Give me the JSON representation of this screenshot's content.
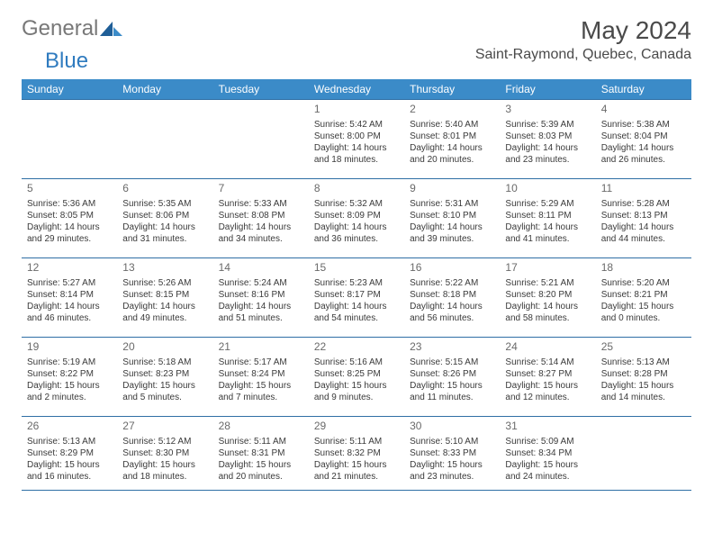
{
  "brand": {
    "name1": "General",
    "name2": "Blue"
  },
  "title": "May 2024",
  "location": "Saint-Raymond, Quebec, Canada",
  "colors": {
    "header_bg": "#3b8bc8",
    "rule": "#2f6fa5",
    "logo_gray": "#787878",
    "logo_blue": "#2f7bbf"
  },
  "weekdays": [
    "Sunday",
    "Monday",
    "Tuesday",
    "Wednesday",
    "Thursday",
    "Friday",
    "Saturday"
  ],
  "weeks": [
    [
      null,
      null,
      null,
      {
        "n": "1",
        "sr": "Sunrise: 5:42 AM",
        "ss": "Sunset: 8:00 PM",
        "d1": "Daylight: 14 hours",
        "d2": "and 18 minutes."
      },
      {
        "n": "2",
        "sr": "Sunrise: 5:40 AM",
        "ss": "Sunset: 8:01 PM",
        "d1": "Daylight: 14 hours",
        "d2": "and 20 minutes."
      },
      {
        "n": "3",
        "sr": "Sunrise: 5:39 AM",
        "ss": "Sunset: 8:03 PM",
        "d1": "Daylight: 14 hours",
        "d2": "and 23 minutes."
      },
      {
        "n": "4",
        "sr": "Sunrise: 5:38 AM",
        "ss": "Sunset: 8:04 PM",
        "d1": "Daylight: 14 hours",
        "d2": "and 26 minutes."
      }
    ],
    [
      {
        "n": "5",
        "sr": "Sunrise: 5:36 AM",
        "ss": "Sunset: 8:05 PM",
        "d1": "Daylight: 14 hours",
        "d2": "and 29 minutes."
      },
      {
        "n": "6",
        "sr": "Sunrise: 5:35 AM",
        "ss": "Sunset: 8:06 PM",
        "d1": "Daylight: 14 hours",
        "d2": "and 31 minutes."
      },
      {
        "n": "7",
        "sr": "Sunrise: 5:33 AM",
        "ss": "Sunset: 8:08 PM",
        "d1": "Daylight: 14 hours",
        "d2": "and 34 minutes."
      },
      {
        "n": "8",
        "sr": "Sunrise: 5:32 AM",
        "ss": "Sunset: 8:09 PM",
        "d1": "Daylight: 14 hours",
        "d2": "and 36 minutes."
      },
      {
        "n": "9",
        "sr": "Sunrise: 5:31 AM",
        "ss": "Sunset: 8:10 PM",
        "d1": "Daylight: 14 hours",
        "d2": "and 39 minutes."
      },
      {
        "n": "10",
        "sr": "Sunrise: 5:29 AM",
        "ss": "Sunset: 8:11 PM",
        "d1": "Daylight: 14 hours",
        "d2": "and 41 minutes."
      },
      {
        "n": "11",
        "sr": "Sunrise: 5:28 AM",
        "ss": "Sunset: 8:13 PM",
        "d1": "Daylight: 14 hours",
        "d2": "and 44 minutes."
      }
    ],
    [
      {
        "n": "12",
        "sr": "Sunrise: 5:27 AM",
        "ss": "Sunset: 8:14 PM",
        "d1": "Daylight: 14 hours",
        "d2": "and 46 minutes."
      },
      {
        "n": "13",
        "sr": "Sunrise: 5:26 AM",
        "ss": "Sunset: 8:15 PM",
        "d1": "Daylight: 14 hours",
        "d2": "and 49 minutes."
      },
      {
        "n": "14",
        "sr": "Sunrise: 5:24 AM",
        "ss": "Sunset: 8:16 PM",
        "d1": "Daylight: 14 hours",
        "d2": "and 51 minutes."
      },
      {
        "n": "15",
        "sr": "Sunrise: 5:23 AM",
        "ss": "Sunset: 8:17 PM",
        "d1": "Daylight: 14 hours",
        "d2": "and 54 minutes."
      },
      {
        "n": "16",
        "sr": "Sunrise: 5:22 AM",
        "ss": "Sunset: 8:18 PM",
        "d1": "Daylight: 14 hours",
        "d2": "and 56 minutes."
      },
      {
        "n": "17",
        "sr": "Sunrise: 5:21 AM",
        "ss": "Sunset: 8:20 PM",
        "d1": "Daylight: 14 hours",
        "d2": "and 58 minutes."
      },
      {
        "n": "18",
        "sr": "Sunrise: 5:20 AM",
        "ss": "Sunset: 8:21 PM",
        "d1": "Daylight: 15 hours",
        "d2": "and 0 minutes."
      }
    ],
    [
      {
        "n": "19",
        "sr": "Sunrise: 5:19 AM",
        "ss": "Sunset: 8:22 PM",
        "d1": "Daylight: 15 hours",
        "d2": "and 2 minutes."
      },
      {
        "n": "20",
        "sr": "Sunrise: 5:18 AM",
        "ss": "Sunset: 8:23 PM",
        "d1": "Daylight: 15 hours",
        "d2": "and 5 minutes."
      },
      {
        "n": "21",
        "sr": "Sunrise: 5:17 AM",
        "ss": "Sunset: 8:24 PM",
        "d1": "Daylight: 15 hours",
        "d2": "and 7 minutes."
      },
      {
        "n": "22",
        "sr": "Sunrise: 5:16 AM",
        "ss": "Sunset: 8:25 PM",
        "d1": "Daylight: 15 hours",
        "d2": "and 9 minutes."
      },
      {
        "n": "23",
        "sr": "Sunrise: 5:15 AM",
        "ss": "Sunset: 8:26 PM",
        "d1": "Daylight: 15 hours",
        "d2": "and 11 minutes."
      },
      {
        "n": "24",
        "sr": "Sunrise: 5:14 AM",
        "ss": "Sunset: 8:27 PM",
        "d1": "Daylight: 15 hours",
        "d2": "and 12 minutes."
      },
      {
        "n": "25",
        "sr": "Sunrise: 5:13 AM",
        "ss": "Sunset: 8:28 PM",
        "d1": "Daylight: 15 hours",
        "d2": "and 14 minutes."
      }
    ],
    [
      {
        "n": "26",
        "sr": "Sunrise: 5:13 AM",
        "ss": "Sunset: 8:29 PM",
        "d1": "Daylight: 15 hours",
        "d2": "and 16 minutes."
      },
      {
        "n": "27",
        "sr": "Sunrise: 5:12 AM",
        "ss": "Sunset: 8:30 PM",
        "d1": "Daylight: 15 hours",
        "d2": "and 18 minutes."
      },
      {
        "n": "28",
        "sr": "Sunrise: 5:11 AM",
        "ss": "Sunset: 8:31 PM",
        "d1": "Daylight: 15 hours",
        "d2": "and 20 minutes."
      },
      {
        "n": "29",
        "sr": "Sunrise: 5:11 AM",
        "ss": "Sunset: 8:32 PM",
        "d1": "Daylight: 15 hours",
        "d2": "and 21 minutes."
      },
      {
        "n": "30",
        "sr": "Sunrise: 5:10 AM",
        "ss": "Sunset: 8:33 PM",
        "d1": "Daylight: 15 hours",
        "d2": "and 23 minutes."
      },
      {
        "n": "31",
        "sr": "Sunrise: 5:09 AM",
        "ss": "Sunset: 8:34 PM",
        "d1": "Daylight: 15 hours",
        "d2": "and 24 minutes."
      },
      null
    ]
  ]
}
